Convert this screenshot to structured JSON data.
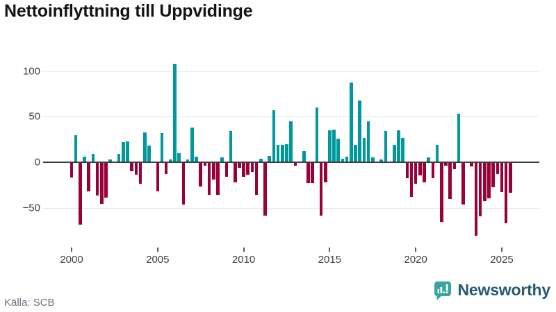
{
  "title": "Nettoinflyttning till Uppvidinge",
  "footer": {
    "source": "Källa: SCB",
    "brand": "Newsworthy"
  },
  "icons": {
    "newsworthy_icon": "speech-bubble-with-bar-chart-and-exclamation",
    "icon_color": "#3aa49f",
    "glyph_color": "#ffffff"
  },
  "chart_data": {
    "type": "bar",
    "title": "Nettoinflyttning till Uppvidinge",
    "xlabel": "",
    "ylabel": "",
    "frequency": "quarterly",
    "x_start": "2000-Q1",
    "x_end": "2025-Q3",
    "x_tick_labels": [
      "2000",
      "2005",
      "2010",
      "2015",
      "2020",
      "2025"
    ],
    "y_ticks": [
      {
        "label": "100",
        "value": 100
      },
      {
        "label": "50",
        "value": 50
      },
      {
        "label": "0",
        "value": 0
      },
      {
        "label": "−50",
        "value": -50
      }
    ],
    "ylim": [
      -88,
      118
    ],
    "grid": true,
    "legend": false,
    "baseline": 0,
    "colors": {
      "positive": "#00989d",
      "negative": "#990139"
    },
    "values": [
      -16,
      30,
      -68,
      6,
      -31,
      9,
      -36,
      -45,
      -38,
      3,
      0,
      9,
      22,
      23,
      -9,
      -13,
      -23,
      33,
      18,
      0,
      -31,
      32,
      -12,
      3,
      108,
      10,
      -46,
      3,
      38,
      6,
      -26,
      -3,
      -35,
      -18,
      -35,
      5,
      -15,
      34,
      -21,
      -5,
      -15,
      -13,
      -10,
      -35,
      4,
      -58,
      7,
      57,
      19,
      19,
      20,
      45,
      -3,
      0,
      12,
      -22,
      -22,
      60,
      -58,
      -21,
      35,
      36,
      26,
      4,
      6,
      88,
      19,
      68,
      27,
      45,
      5,
      0,
      3,
      34,
      0,
      19,
      35,
      27,
      -17,
      -37,
      -23,
      -14,
      -21,
      5,
      -17,
      19,
      -65,
      -3,
      -40,
      -7,
      53,
      -46,
      0,
      -4,
      -80,
      -59,
      -42,
      -39,
      -27,
      -12,
      -32,
      -66,
      -33
    ]
  }
}
